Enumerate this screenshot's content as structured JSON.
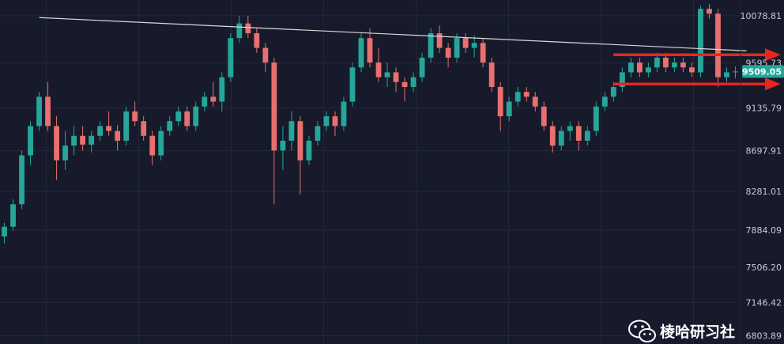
{
  "colors": {
    "background": "#161a2b",
    "grid": "#232838",
    "bull": "#26a69a",
    "bear": "#e8706e",
    "trendline": "#d9d9d9",
    "arrow": "#e8251f",
    "price_tag": "#26a69a",
    "axis_text": "#c8cbd6"
  },
  "watermark": {
    "text": "棱哈研习社",
    "icon": "wechat-icon"
  },
  "chart_data": {
    "type": "candlestick",
    "title": "",
    "xlabel": "",
    "ylabel": "",
    "ylim": [
      6720,
      10240
    ],
    "y_ticks": [
      "10078.81",
      "9595.73",
      "9135.79",
      "8697.91",
      "8281.01",
      "7884.09",
      "7506.20",
      "7146.42",
      "6803.89"
    ],
    "y_tick_values": [
      10078.81,
      9595.73,
      9135.79,
      8697.91,
      8281.01,
      7884.09,
      7506.2,
      7146.42,
      6803.89
    ],
    "last_price": "9509.05",
    "last_price_value": 9509.05,
    "grid": true,
    "candles": [
      [
        7820,
        7960,
        7750,
        7920
      ],
      [
        7920,
        8200,
        7880,
        8150
      ],
      [
        8150,
        8700,
        8100,
        8650
      ],
      [
        8650,
        9000,
        8550,
        8950
      ],
      [
        8950,
        9300,
        8900,
        9250
      ],
      [
        9250,
        9400,
        8900,
        8950
      ],
      [
        8950,
        9050,
        8400,
        8600
      ],
      [
        8600,
        8900,
        8500,
        8750
      ],
      [
        8750,
        8950,
        8650,
        8850
      ],
      [
        8850,
        8950,
        8700,
        8760
      ],
      [
        8760,
        8900,
        8680,
        8850
      ],
      [
        8850,
        9000,
        8800,
        8950
      ],
      [
        8950,
        9100,
        8850,
        8900
      ],
      [
        8900,
        8960,
        8700,
        8800
      ],
      [
        8800,
        9150,
        8750,
        9100
      ],
      [
        9100,
        9200,
        8950,
        9000
      ],
      [
        9000,
        9050,
        8800,
        8850
      ],
      [
        8850,
        8900,
        8550,
        8650
      ],
      [
        8650,
        8950,
        8600,
        8900
      ],
      [
        8900,
        9050,
        8850,
        9000
      ],
      [
        9000,
        9150,
        8950,
        9100
      ],
      [
        9100,
        9150,
        8900,
        8950
      ],
      [
        8950,
        9200,
        8900,
        9150
      ],
      [
        9150,
        9300,
        9100,
        9250
      ],
      [
        9250,
        9400,
        9150,
        9200
      ],
      [
        9200,
        9500,
        9100,
        9450
      ],
      [
        9450,
        9900,
        9400,
        9850
      ],
      [
        9850,
        10080,
        9800,
        10000
      ],
      [
        10000,
        10080,
        9850,
        9900
      ],
      [
        9900,
        9950,
        9700,
        9750
      ],
      [
        9750,
        9800,
        9500,
        9600
      ],
      [
        9600,
        9650,
        8150,
        8700
      ],
      [
        8700,
        8950,
        8500,
        8800
      ],
      [
        8800,
        9100,
        8700,
        9000
      ],
      [
        9000,
        9050,
        8250,
        8600
      ],
      [
        8600,
        8850,
        8550,
        8800
      ],
      [
        8800,
        9000,
        8750,
        8950
      ],
      [
        8950,
        9100,
        8900,
        9050
      ],
      [
        9050,
        9100,
        8850,
        8950
      ],
      [
        8950,
        9250,
        8900,
        9200
      ],
      [
        9200,
        9600,
        9150,
        9550
      ],
      [
        9550,
        9900,
        9500,
        9850
      ],
      [
        9850,
        9950,
        9550,
        9600
      ],
      [
        9600,
        9750,
        9400,
        9450
      ],
      [
        9450,
        9600,
        9350,
        9500
      ],
      [
        9500,
        9550,
        9300,
        9400
      ],
      [
        9400,
        9450,
        9200,
        9350
      ],
      [
        9350,
        9500,
        9300,
        9450
      ],
      [
        9450,
        9700,
        9400,
        9650
      ],
      [
        9650,
        9950,
        9600,
        9900
      ],
      [
        9900,
        9980,
        9700,
        9750
      ],
      [
        9750,
        9800,
        9550,
        9650
      ],
      [
        9650,
        9900,
        9600,
        9850
      ],
      [
        9850,
        9900,
        9700,
        9750
      ],
      [
        9750,
        9880,
        9650,
        9800
      ],
      [
        9800,
        9850,
        9550,
        9600
      ],
      [
        9600,
        9650,
        9300,
        9350
      ],
      [
        9350,
        9400,
        8900,
        9050
      ],
      [
        9050,
        9250,
        9000,
        9200
      ],
      [
        9200,
        9350,
        9150,
        9300
      ],
      [
        9300,
        9350,
        9200,
        9250
      ],
      [
        9250,
        9300,
        9100,
        9150
      ],
      [
        9150,
        9200,
        8900,
        8950
      ],
      [
        8950,
        9000,
        8680,
        8750
      ],
      [
        8750,
        8950,
        8700,
        8900
      ],
      [
        8900,
        9000,
        8800,
        8950
      ],
      [
        8950,
        9000,
        8700,
        8800
      ],
      [
        8800,
        8950,
        8750,
        8900
      ],
      [
        8900,
        9200,
        8850,
        9150
      ],
      [
        9150,
        9300,
        9100,
        9250
      ],
      [
        9250,
        9400,
        9200,
        9350
      ],
      [
        9350,
        9550,
        9300,
        9500
      ],
      [
        9500,
        9650,
        9450,
        9600
      ],
      [
        9600,
        9650,
        9450,
        9500
      ],
      [
        9500,
        9600,
        9450,
        9550
      ],
      [
        9550,
        9700,
        9500,
        9650
      ],
      [
        9650,
        9700,
        9500,
        9550
      ],
      [
        9550,
        9650,
        9500,
        9600
      ],
      [
        9600,
        9650,
        9500,
        9550
      ],
      [
        9550,
        9600,
        9450,
        9500
      ],
      [
        9500,
        10180,
        9450,
        10150
      ],
      [
        10150,
        10200,
        10050,
        10100
      ],
      [
        10100,
        10150,
        9350,
        9450
      ],
      [
        9450,
        9550,
        9400,
        9500
      ],
      [
        9500,
        9560,
        9440,
        9509
      ]
    ],
    "trendline": {
      "from": [
        4,
        10060
      ],
      "to": [
        84,
        9720
      ]
    },
    "annotations": [
      {
        "type": "arrow",
        "color": "#e8251f",
        "from": [
          70,
          9680
        ],
        "to": [
          84,
          9680
        ]
      },
      {
        "type": "arrow",
        "color": "#e8251f",
        "from": [
          70,
          9380
        ],
        "to": [
          84,
          9380
        ]
      }
    ]
  }
}
